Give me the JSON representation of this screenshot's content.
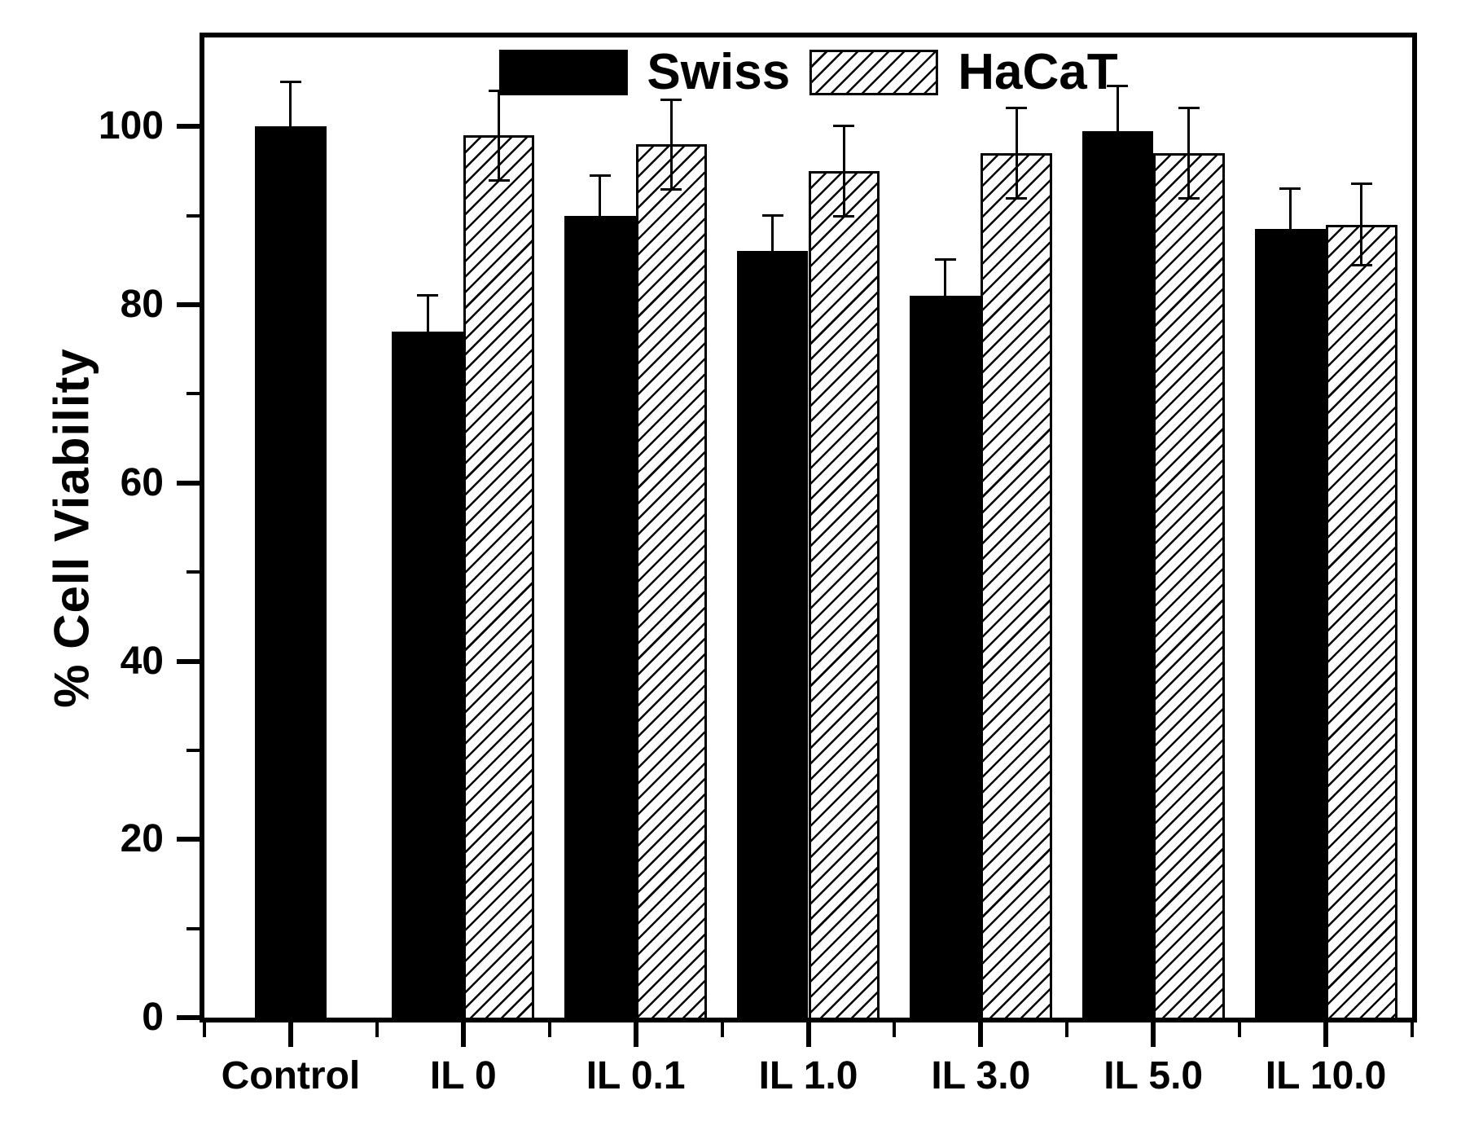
{
  "figure": {
    "background_color": "#ffffff",
    "ink_color": "#000000"
  },
  "chart_data": {
    "type": "bar",
    "title": "",
    "xlabel": "",
    "ylabel": "% Cell Viability",
    "ylim": [
      0,
      110
    ],
    "yticks_major": [
      0,
      20,
      40,
      60,
      80,
      100
    ],
    "yticks_minor": [
      10,
      30,
      50,
      70,
      90
    ],
    "grid": false,
    "legend_position": "top-center-inside",
    "error_bars": "symmetric",
    "categories": [
      "Control",
      "IL 0",
      "IL 0.1",
      "IL 1.0",
      "IL 3.0",
      "IL 5.0",
      "IL 10.0"
    ],
    "series": [
      {
        "name": "Swiss",
        "fill": "solid-black",
        "color": "#000000",
        "values": [
          100,
          77,
          90,
          86,
          81,
          99.5,
          88.5
        ],
        "errors": [
          5,
          4,
          4.5,
          4,
          4,
          5,
          4.5
        ]
      },
      {
        "name": "HaCaT",
        "fill": "diagonal-hatch",
        "color": "#000000",
        "values": [
          null,
          99,
          98,
          95,
          97,
          97,
          89
        ],
        "errors": [
          null,
          5,
          5,
          5,
          5,
          5,
          4.5
        ]
      }
    ]
  }
}
